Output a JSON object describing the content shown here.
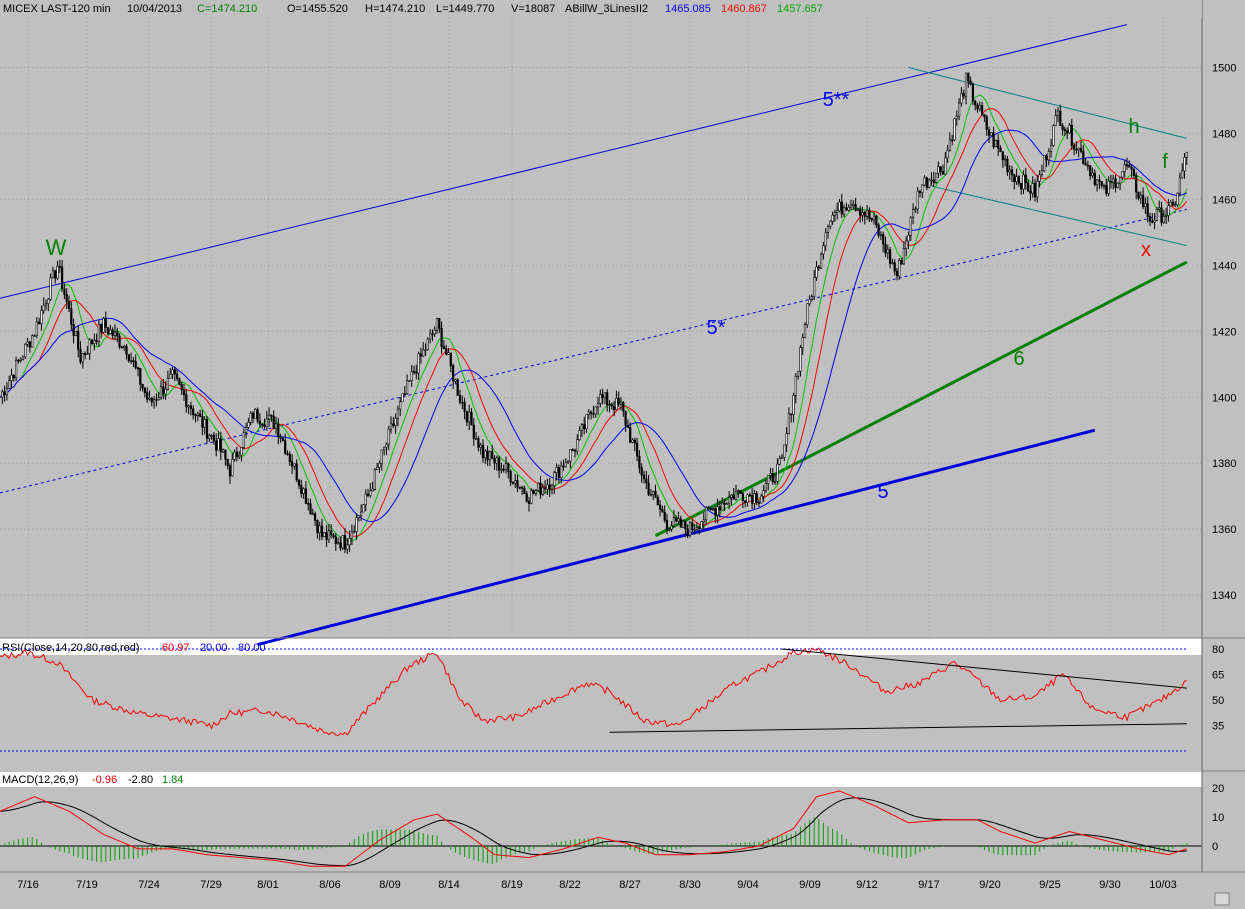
{
  "header": {
    "symbol_label": "MICEX LAST-120 min",
    "date": "10/04/2013",
    "close": "C=1474.210",
    "open": "O=1455.520",
    "high": "H=1474.210",
    "low": "L=1449.770",
    "volume": "V=18087",
    "indicator_name": "ABillW_3LinesII2",
    "ma_blue": "1465.085",
    "ma_red": "1460.867",
    "ma_green": "1457.657"
  },
  "colors": {
    "panel_bg": "#c0c0c0",
    "grid": "#a0a0a0",
    "candle": "#000000",
    "ma_blue": "#0000ff",
    "ma_red": "#ff0000",
    "ma_green": "#00c000",
    "channel_blue": "#0000dd",
    "trend_green": "#008000",
    "wedge_teal": "#008080"
  },
  "price_panel": {
    "yticks": [
      "1500",
      "1480",
      "1460",
      "1440",
      "1420",
      "1400",
      "1380",
      "1360",
      "1340"
    ],
    "annotations": {
      "w": "W",
      "five_double_star": "5**",
      "five_star": "5*",
      "five": "5",
      "six": "6",
      "h": "h",
      "f": "f",
      "x": "x"
    }
  },
  "rsi_panel": {
    "title": "RSI(Close,14,20,80,red,red)",
    "value": "60.97",
    "low_level": "20.00",
    "high_level": "80.00",
    "yticks": [
      "80",
      "65",
      "50",
      "35"
    ]
  },
  "macd_panel": {
    "title": "MACD(12,26,9)",
    "macd": "-0.96",
    "signal": "-2.80",
    "histogram": "1.84",
    "yticks": [
      "20",
      "10",
      "0"
    ]
  },
  "x_axis": {
    "labels": [
      "7/16",
      "7/19",
      "7/24",
      "7/29",
      "8/01",
      "8/06",
      "8/09",
      "8/14",
      "8/19",
      "8/22",
      "8/27",
      "8/30",
      "9/04",
      "9/09",
      "9/12",
      "9/17",
      "9/20",
      "9/25",
      "9/30",
      "10/03"
    ]
  },
  "chart_data": {
    "type": "line",
    "ylim": [
      1327,
      1515
    ],
    "price_keypoints": [
      [
        0,
        1400
      ],
      [
        15,
        1420
      ],
      [
        25,
        1440
      ],
      [
        35,
        1412
      ],
      [
        45,
        1422
      ],
      [
        55,
        1415
      ],
      [
        65,
        1398
      ],
      [
        75,
        1406
      ],
      [
        85,
        1395
      ],
      [
        95,
        1385
      ],
      [
        100,
        1378
      ],
      [
        110,
        1395
      ],
      [
        120,
        1392
      ],
      [
        130,
        1375
      ],
      [
        140,
        1358
      ],
      [
        150,
        1356
      ],
      [
        160,
        1370
      ],
      [
        170,
        1390
      ],
      [
        180,
        1408
      ],
      [
        190,
        1422
      ],
      [
        200,
        1400
      ],
      [
        210,
        1383
      ],
      [
        220,
        1378
      ],
      [
        230,
        1370
      ],
      [
        240,
        1375
      ],
      [
        250,
        1385
      ],
      [
        260,
        1400
      ],
      [
        270,
        1397
      ],
      [
        280,
        1375
      ],
      [
        290,
        1362
      ],
      [
        300,
        1360
      ],
      [
        310,
        1366
      ],
      [
        320,
        1371
      ],
      [
        330,
        1370
      ],
      [
        340,
        1380
      ],
      [
        350,
        1423
      ],
      [
        360,
        1454
      ],
      [
        370,
        1460
      ],
      [
        380,
        1453
      ],
      [
        390,
        1437
      ],
      [
        400,
        1464
      ],
      [
        410,
        1470
      ],
      [
        420,
        1496
      ],
      [
        430,
        1480
      ],
      [
        440,
        1468
      ],
      [
        450,
        1462
      ],
      [
        460,
        1486
      ],
      [
        470,
        1474
      ],
      [
        480,
        1462
      ],
      [
        490,
        1470
      ],
      [
        500,
        1454
      ],
      [
        510,
        1457
      ],
      [
        516,
        1474
      ]
    ],
    "rsi_keypoints": [
      [
        0,
        75
      ],
      [
        12,
        78
      ],
      [
        25,
        72
      ],
      [
        40,
        50
      ],
      [
        60,
        42
      ],
      [
        80,
        38
      ],
      [
        92,
        35
      ],
      [
        100,
        42
      ],
      [
        115,
        44
      ],
      [
        125,
        40
      ],
      [
        140,
        32
      ],
      [
        150,
        30
      ],
      [
        165,
        52
      ],
      [
        178,
        70
      ],
      [
        190,
        78
      ],
      [
        200,
        50
      ],
      [
        210,
        38
      ],
      [
        225,
        40
      ],
      [
        240,
        50
      ],
      [
        255,
        60
      ],
      [
        265,
        55
      ],
      [
        280,
        38
      ],
      [
        295,
        35
      ],
      [
        305,
        45
      ],
      [
        320,
        60
      ],
      [
        330,
        66
      ],
      [
        340,
        74
      ],
      [
        345,
        78
      ],
      [
        355,
        80
      ],
      [
        370,
        70
      ],
      [
        385,
        55
      ],
      [
        400,
        60
      ],
      [
        415,
        72
      ],
      [
        425,
        62
      ],
      [
        435,
        50
      ],
      [
        450,
        52
      ],
      [
        462,
        65
      ],
      [
        475,
        45
      ],
      [
        490,
        40
      ],
      [
        505,
        50
      ],
      [
        516,
        60.97
      ]
    ],
    "macd_keypoints": [
      [
        0,
        12
      ],
      [
        15,
        17
      ],
      [
        30,
        12
      ],
      [
        45,
        4
      ],
      [
        60,
        -1
      ],
      [
        75,
        -1
      ],
      [
        90,
        -3
      ],
      [
        105,
        -4
      ],
      [
        120,
        -5
      ],
      [
        135,
        -7
      ],
      [
        150,
        -7
      ],
      [
        165,
        2
      ],
      [
        180,
        9
      ],
      [
        190,
        11
      ],
      [
        205,
        3
      ],
      [
        215,
        -3
      ],
      [
        230,
        -4
      ],
      [
        245,
        -1
      ],
      [
        260,
        3
      ],
      [
        272,
        1
      ],
      [
        285,
        -3
      ],
      [
        300,
        -3
      ],
      [
        315,
        -2
      ],
      [
        330,
        0
      ],
      [
        345,
        6
      ],
      [
        355,
        17
      ],
      [
        365,
        19
      ],
      [
        380,
        14
      ],
      [
        395,
        8
      ],
      [
        410,
        9
      ],
      [
        425,
        9
      ],
      [
        435,
        5
      ],
      [
        450,
        1
      ],
      [
        465,
        5
      ],
      [
        480,
        2
      ],
      [
        495,
        -1
      ],
      [
        508,
        -3
      ],
      [
        516,
        -0.96
      ]
    ],
    "drawn_lines": {
      "upper_channel": [
        [
          0,
          1430
        ],
        [
          490,
          1513
        ]
      ],
      "channel_midline": [
        [
          0,
          1371
        ],
        [
          516,
          1457
        ]
      ],
      "lower_channel_5": [
        [
          112,
          1325
        ],
        [
          476,
          1390
        ]
      ],
      "trend_6": [
        [
          285,
          1358
        ],
        [
          516,
          1441
        ]
      ],
      "wedge_top": [
        [
          395,
          1500
        ],
        [
          516,
          1478.5
        ]
      ],
      "wedge_bottom": [
        [
          405,
          1464
        ],
        [
          516,
          1446
        ]
      ],
      "rsi_resistance": [
        [
          340,
          80
        ],
        [
          516,
          57
        ]
      ],
      "rsi_support": [
        [
          265,
          31
        ],
        [
          516,
          36
        ]
      ]
    }
  }
}
